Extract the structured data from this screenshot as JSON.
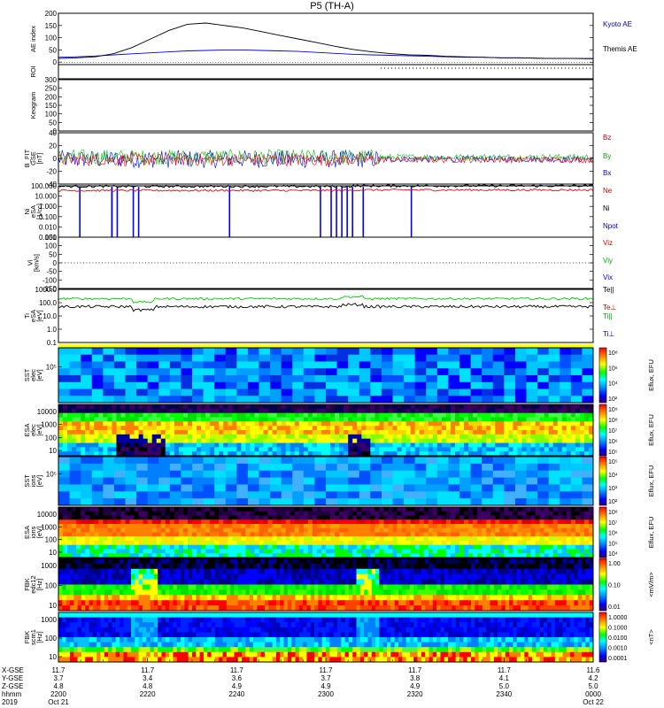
{
  "title": "P5 (TH-A)",
  "colors": {
    "black": "#000000",
    "blue": "#0000ff",
    "red": "#ff0000",
    "green": "#00cc00",
    "label_blue": "#0000cc",
    "label_red": "#cc0000",
    "label_green": "#00aa00"
  },
  "chart_data": [
    {
      "type": "line",
      "id": "ae",
      "ylabel": "AE index",
      "ylim": [
        -10,
        200
      ],
      "yticks": [
        "200",
        "150",
        "100",
        "50",
        "0"
      ],
      "series": [
        {
          "name": "Kyoto AE",
          "color": "#0000ff",
          "values": [
            20,
            22,
            25,
            30,
            34,
            38,
            42,
            46,
            48,
            50,
            50,
            48,
            46,
            44,
            40,
            36,
            32,
            30,
            28,
            26,
            24,
            22,
            20,
            20,
            18,
            18,
            16,
            15,
            15,
            15
          ]
        },
        {
          "name": "Themis AE",
          "color": "#000000",
          "values": [
            15,
            18,
            22,
            35,
            60,
            95,
            130,
            155,
            160,
            150,
            140,
            125,
            110,
            95,
            80,
            65,
            52,
            42,
            35,
            30,
            28,
            24,
            22,
            20,
            18,
            18,
            16,
            15,
            15,
            14
          ]
        }
      ],
      "legend": [
        "Kyoto AE",
        "Themis AE"
      ]
    },
    {
      "type": "strip",
      "id": "roi",
      "ylabel": "ROI"
    },
    {
      "type": "line",
      "id": "keo",
      "ylabel": "Keogram",
      "yticks": [
        "300",
        "250",
        "200",
        "150",
        "100",
        "50",
        "0"
      ],
      "ylim": [
        0,
        300
      ]
    },
    {
      "type": "line",
      "id": "bfit",
      "ylabel": "B_FIT",
      "ylabel2": "GSE",
      "ylabel3": "[nT]",
      "ylim": [
        -20,
        40
      ],
      "yticks": [
        "40",
        "20",
        "0",
        "-20",
        "-40"
      ],
      "series": [
        {
          "name": "Bz",
          "color": "#ff0000"
        },
        {
          "name": "By",
          "color": "#00cc00"
        },
        {
          "name": "Bx",
          "color": "#0000ff"
        }
      ],
      "legend": [
        "Bz",
        "By",
        "Bx"
      ]
    },
    {
      "type": "line",
      "id": "ni",
      "scale": "log",
      "ylabel": "Ni",
      "ylabel2": "eSA",
      "ylabel3": "[1/cc]",
      "yticks": [
        "100.000",
        "10.000",
        "1.000",
        "0.100",
        "0.010",
        "0.001"
      ],
      "series": [
        {
          "name": "Ne",
          "color": "#ff0000"
        },
        {
          "name": "Ni",
          "color": "#000000"
        },
        {
          "name": "Npot",
          "color": "#0000ff"
        }
      ],
      "legend": [
        "Ne",
        "Ni",
        "Npot"
      ]
    },
    {
      "type": "line",
      "id": "vi",
      "ylabel": "Vi",
      "ylabel2": "[km/s]",
      "yticks": [
        "150",
        "100",
        "50",
        "0",
        "-50",
        "-100",
        "-150"
      ],
      "ylim": [
        -150,
        150
      ],
      "legend": [
        "Viz",
        "Viy",
        "Vix"
      ]
    },
    {
      "type": "line",
      "id": "ti",
      "scale": "log",
      "ylabel": "Ti",
      "ylabel2": "eSA",
      "ylabel3": "[eV]",
      "yticks": [
        "1000.0",
        "100.0",
        "10.0",
        "1.0",
        "0.1"
      ],
      "legend": [
        "Te||",
        "Te⊥",
        "Ti||",
        "Ti⊥"
      ]
    },
    {
      "type": "heatmap",
      "id": "sst_e",
      "ylabel": "SST",
      "ylabel2": "elec",
      "ylabel3": "[eV]",
      "yticks": [
        "10⁵"
      ],
      "colorbar": "Eflux, EFU",
      "cb_ticks": [
        "10⁸",
        "10⁶",
        "10⁴",
        "10²"
      ]
    },
    {
      "type": "heatmap",
      "id": "esa_e",
      "ylabel": "ESA",
      "ylabel2": "elec",
      "ylabel3": "[eV]",
      "yticks": [
        "10000",
        "1000",
        "100",
        "10"
      ],
      "colorbar": "Eflux, EFU",
      "cb_ticks": [
        "10⁹",
        "10⁸",
        "10⁷",
        "10⁶",
        "10⁵"
      ]
    },
    {
      "type": "heatmap",
      "id": "sst_i",
      "ylabel": "SST",
      "ylabel2": "ions",
      "ylabel3": "[eV]",
      "yticks": [
        "10⁵"
      ],
      "colorbar": "Eflux, EFU",
      "cb_ticks": [
        "10⁵",
        "10⁴",
        "10³",
        "10²"
      ]
    },
    {
      "type": "heatmap",
      "id": "esa_i",
      "ylabel": "ESA",
      "ylabel2": "ions",
      "ylabel3": "[eV]",
      "yticks": [
        "10000",
        "1000",
        "100",
        "10"
      ],
      "colorbar": "Eflux, EFU",
      "cb_ticks": [
        "10⁸",
        "10⁷",
        "10⁶",
        "10⁵",
        "10⁴"
      ]
    },
    {
      "type": "heatmap",
      "id": "fbk_e",
      "ylabel": "FBK",
      "ylabel2": "edc12",
      "ylabel3": "[Hz]",
      "yticks": [
        "1000",
        "100",
        "10"
      ],
      "colorbar": "<mV/m>",
      "cb_ticks": [
        "1.00",
        "0.10",
        "0.01"
      ]
    },
    {
      "type": "heatmap",
      "id": "fbk_b",
      "ylabel": "FBK",
      "ylabel2": "scm1",
      "ylabel3": "[Hz]",
      "yticks": [
        "1000",
        "100",
        "10"
      ],
      "colorbar": "<nT>",
      "cb_ticks": [
        "1.0000",
        "0.1000",
        "0.0100",
        "0.0010",
        "0.0001"
      ]
    }
  ],
  "xaxis": {
    "row_labels": [
      "X-GSE",
      "Y-GSE",
      "Z-GSE",
      "hhmm",
      "2019"
    ],
    "columns": [
      [
        "11.7",
        "3.7",
        "4.8",
        "2200",
        "Oct 21"
      ],
      [
        "11.7",
        "3.4",
        "4.8",
        "2220",
        ""
      ],
      [
        "11.7",
        "3.6",
        "4.9",
        "2240",
        ""
      ],
      [
        "11.7",
        "3.7",
        "4.9",
        "2300",
        ""
      ],
      [
        "11.7",
        "3.8",
        "4.9",
        "2320",
        ""
      ],
      [
        "11.7",
        "4.1",
        "5.0",
        "2340",
        ""
      ],
      [
        "11.6",
        "4.2",
        "5.0",
        "0000",
        "Oct 22"
      ]
    ]
  }
}
